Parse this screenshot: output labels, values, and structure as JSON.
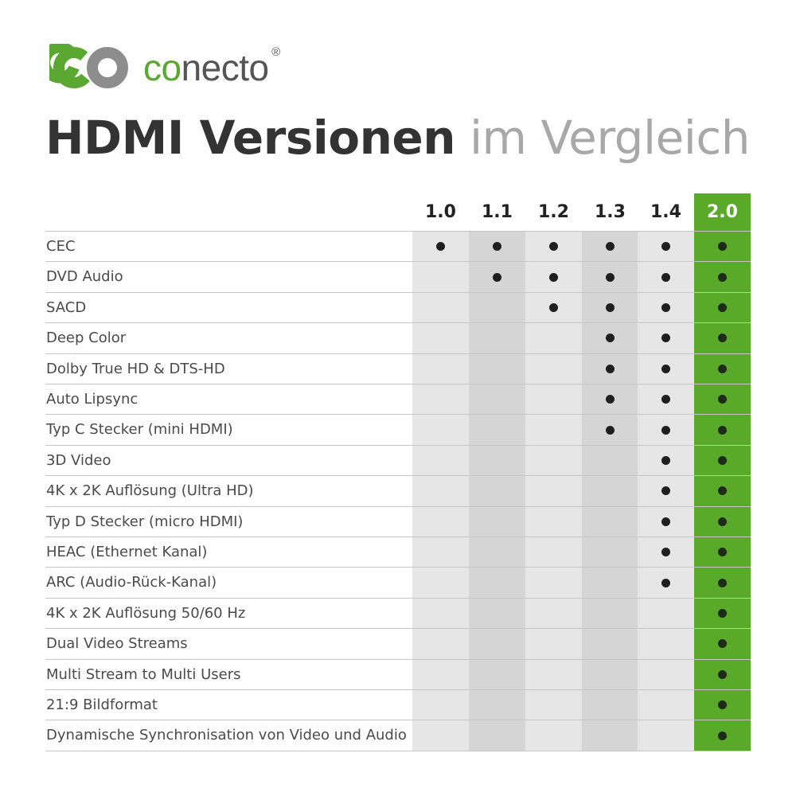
{
  "brand": {
    "name_accent": "co",
    "name_rest": "necto",
    "registered": "®",
    "accent_color": "#5aa832",
    "icon": "infinity-logo-icon"
  },
  "headline": {
    "bold": "HDMI Versionen",
    "light": "im Vergleich"
  },
  "table": {
    "versions": [
      "1.0",
      "1.1",
      "1.2",
      "1.3",
      "1.4",
      "2.0"
    ],
    "highlight_version": "2.0",
    "highlight_color": "#5aaa2a",
    "supported_mark": "●",
    "rows": [
      {
        "feature": "CEC",
        "since": "1.0"
      },
      {
        "feature": "DVD Audio",
        "since": "1.1"
      },
      {
        "feature": "SACD",
        "since": "1.2"
      },
      {
        "feature": "Deep Color",
        "since": "1.3"
      },
      {
        "feature": "Dolby True HD & DTS-HD",
        "since": "1.3"
      },
      {
        "feature": "Auto Lipsync",
        "since": "1.3"
      },
      {
        "feature": "Typ C Stecker (mini HDMI)",
        "since": "1.3"
      },
      {
        "feature": "3D Video",
        "since": "1.4"
      },
      {
        "feature": "4K x 2K Auflösung (Ultra HD)",
        "since": "1.4"
      },
      {
        "feature": "Typ D Stecker (micro HDMI)",
        "since": "1.4"
      },
      {
        "feature": "HEAC (Ethernet Kanal)",
        "since": "1.4"
      },
      {
        "feature": "ARC (Audio-Rück-Kanal)",
        "since": "1.4"
      },
      {
        "feature": "4K x 2K Auflösung 50/60 Hz",
        "since": "2.0"
      },
      {
        "feature": "Dual Video Streams",
        "since": "2.0"
      },
      {
        "feature": "Multi Stream to Multi Users",
        "since": "2.0"
      },
      {
        "feature": "21:9 Bildformat",
        "since": "2.0"
      },
      {
        "feature": "Dynamische Synchronisation von Video und Audio",
        "since": "2.0"
      }
    ]
  }
}
